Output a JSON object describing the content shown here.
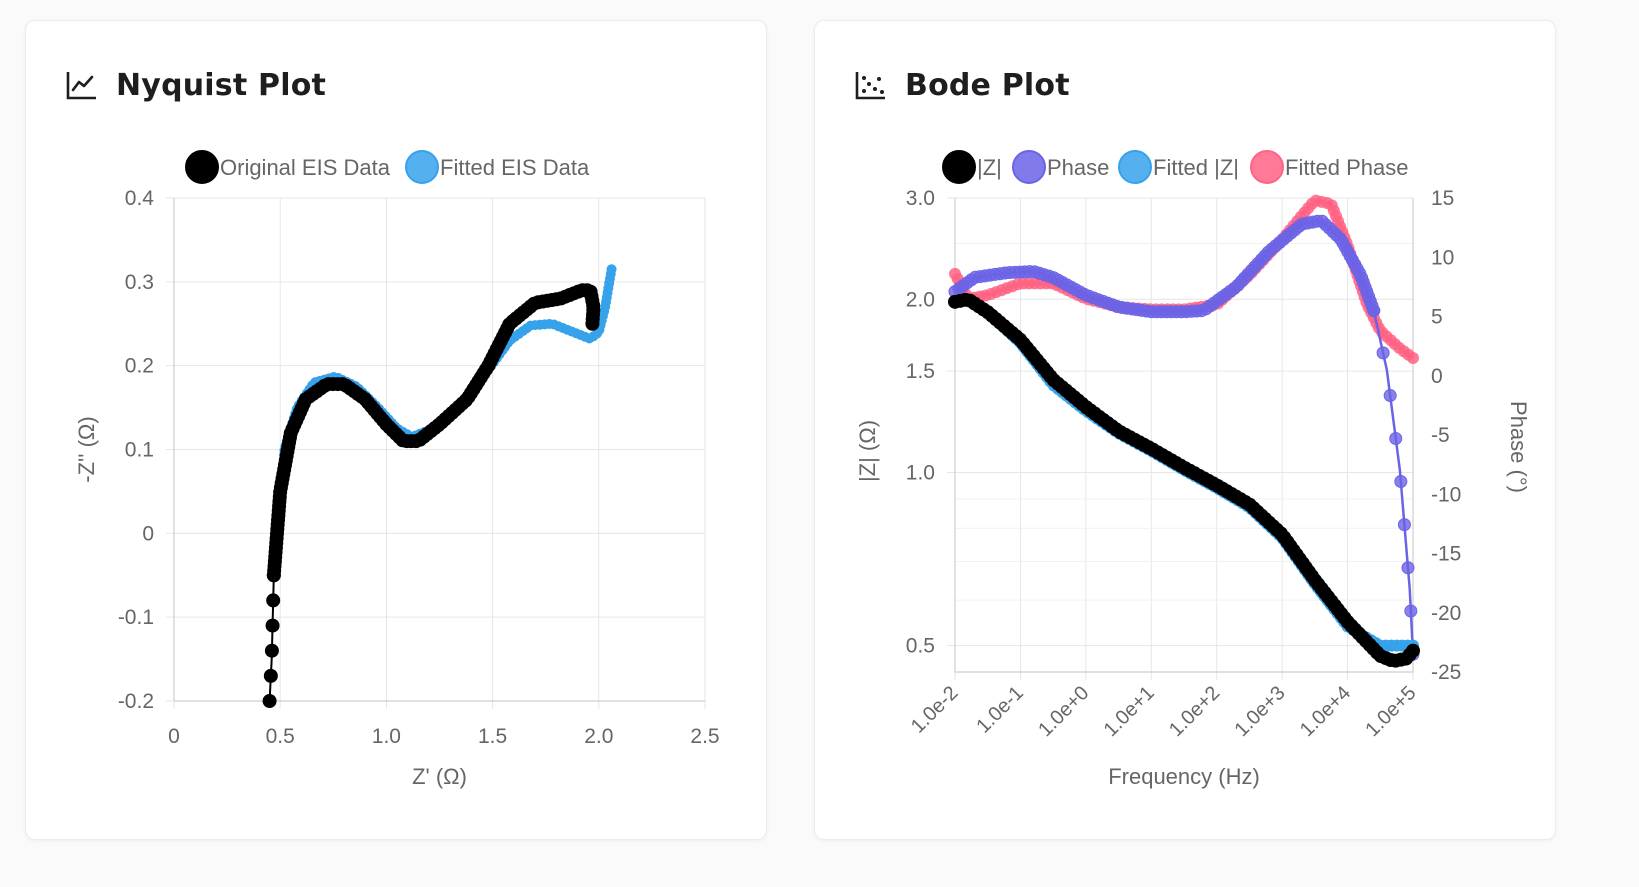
{
  "panels": {
    "nyquist": {
      "title": "Nyquist Plot",
      "icon": "line-chart-icon"
    },
    "bode": {
      "title": "Bode Plot",
      "icon": "scatter-chart-icon"
    }
  },
  "colors": {
    "original": "#000000",
    "fitted_nyquist": "#36a2eb",
    "phase": "#6b63e6",
    "fitted_z": "#36a2eb",
    "fitted_phase": "#ff6384"
  },
  "chart_data": [
    {
      "id": "nyquist",
      "type": "scatter",
      "title": "Nyquist Plot",
      "xlabel": "Z' (Ω)",
      "ylabel": "-Z'' (Ω)",
      "xlim": [
        0,
        2.5
      ],
      "ylim": [
        -0.2,
        0.4
      ],
      "xticks": [
        "0",
        "0.5",
        "1.0",
        "1.5",
        "2.0",
        "2.5"
      ],
      "yticks": [
        "-0.2",
        "-0.1",
        "0",
        "0.1",
        "0.2",
        "0.3",
        "0.4"
      ],
      "legend": [
        "Original EIS Data",
        "Fitted EIS Data"
      ],
      "series": [
        {
          "name": "Original EIS Data",
          "control": [
            [
              0.45,
              -0.2
            ],
            [
              0.46,
              -0.15
            ],
            [
              0.47,
              -0.05
            ],
            [
              0.5,
              0.05
            ],
            [
              0.55,
              0.12
            ],
            [
              0.62,
              0.16
            ],
            [
              0.72,
              0.178
            ],
            [
              0.8,
              0.178
            ],
            [
              0.9,
              0.16
            ],
            [
              1.0,
              0.13
            ],
            [
              1.08,
              0.11
            ],
            [
              1.15,
              0.11
            ],
            [
              1.25,
              0.13
            ],
            [
              1.38,
              0.16
            ],
            [
              1.48,
              0.2
            ],
            [
              1.58,
              0.25
            ],
            [
              1.7,
              0.275
            ],
            [
              1.82,
              0.28
            ],
            [
              1.92,
              0.29
            ],
            [
              1.96,
              0.29
            ],
            [
              1.975,
              0.27
            ],
            [
              1.97,
              0.25
            ]
          ]
        },
        {
          "name": "Fitted EIS Data",
          "control": [
            [
              0.5,
              0.02
            ],
            [
              0.52,
              0.1
            ],
            [
              0.58,
              0.15
            ],
            [
              0.66,
              0.18
            ],
            [
              0.76,
              0.187
            ],
            [
              0.86,
              0.175
            ],
            [
              0.96,
              0.15
            ],
            [
              1.05,
              0.125
            ],
            [
              1.12,
              0.115
            ],
            [
              1.22,
              0.125
            ],
            [
              1.35,
              0.155
            ],
            [
              1.48,
              0.195
            ],
            [
              1.58,
              0.23
            ],
            [
              1.68,
              0.248
            ],
            [
              1.78,
              0.25
            ],
            [
              1.88,
              0.24
            ],
            [
              1.96,
              0.232
            ],
            [
              2.0,
              0.24
            ],
            [
              2.03,
              0.27
            ],
            [
              2.06,
              0.315
            ]
          ]
        }
      ]
    },
    {
      "id": "bode",
      "type": "scatter",
      "title": "Bode Plot",
      "xlabel": "Frequency (Hz)",
      "ylabel": "|Z| (Ω)",
      "y2label": "Phase (°)",
      "x_log_range": [
        -2,
        5
      ],
      "ylim": [
        0.45,
        3.0
      ],
      "y_scale": "log",
      "y2lim": [
        -25,
        15
      ],
      "xticks": [
        "1.0e-2",
        "1.0e-1",
        "1.0e+0",
        "1.0e+1",
        "1.0e+2",
        "1.0e+3",
        "1.0e+4",
        "1.0e+5"
      ],
      "yticks": [
        "0.5",
        "1.0",
        "1.5",
        "2.0",
        "3.0"
      ],
      "y2ticks": [
        "15",
        "10",
        "5",
        "0",
        "-5",
        "-10",
        "-15",
        "-20",
        "-25"
      ],
      "legend": [
        "|Z|",
        "Phase",
        "Fitted |Z|",
        "Fitted Phase"
      ],
      "series": [
        {
          "name": "|Z|",
          "axis": "y",
          "control": [
            [
              -2,
              1.98
            ],
            [
              -1.8,
              2.0
            ],
            [
              -1.5,
              1.9
            ],
            [
              -1.0,
              1.7
            ],
            [
              -0.5,
              1.45
            ],
            [
              0,
              1.3
            ],
            [
              0.5,
              1.18
            ],
            [
              1,
              1.1
            ],
            [
              1.5,
              1.02
            ],
            [
              2,
              0.95
            ],
            [
              2.5,
              0.88
            ],
            [
              3,
              0.78
            ],
            [
              3.5,
              0.65
            ],
            [
              4,
              0.55
            ],
            [
              4.5,
              0.48
            ],
            [
              4.7,
              0.47
            ],
            [
              4.9,
              0.475
            ],
            [
              5,
              0.49
            ]
          ]
        },
        {
          "name": "Fitted |Z|",
          "axis": "y",
          "control": [
            [
              -2,
              1.98
            ],
            [
              -1.8,
              2.0
            ],
            [
              -1.5,
              1.9
            ],
            [
              -1.0,
              1.68
            ],
            [
              -0.5,
              1.42
            ],
            [
              0,
              1.28
            ],
            [
              0.5,
              1.17
            ],
            [
              1,
              1.09
            ],
            [
              1.5,
              1.01
            ],
            [
              2,
              0.94
            ],
            [
              2.5,
              0.87
            ],
            [
              3,
              0.77
            ],
            [
              3.5,
              0.64
            ],
            [
              4,
              0.54
            ],
            [
              4.5,
              0.5
            ],
            [
              5,
              0.5
            ]
          ]
        },
        {
          "name": "Phase",
          "axis": "y2",
          "control": [
            [
              -2,
              7.1
            ],
            [
              -1.7,
              8.3
            ],
            [
              -1.2,
              8.7
            ],
            [
              -0.8,
              8.8
            ],
            [
              -0.5,
              8.3
            ],
            [
              0,
              6.8
            ],
            [
              0.5,
              5.8
            ],
            [
              1,
              5.4
            ],
            [
              1.5,
              5.4
            ],
            [
              1.8,
              5.5
            ],
            [
              2.3,
              7.5
            ],
            [
              2.8,
              10.5
            ],
            [
              3.3,
              12.8
            ],
            [
              3.6,
              13.1
            ],
            [
              3.9,
              11.5
            ],
            [
              4.2,
              8.5
            ],
            [
              4.4,
              5.5
            ],
            [
              4.6,
              0.5
            ],
            [
              4.8,
              -8
            ],
            [
              4.95,
              -18
            ],
            [
              5,
              -23.5
            ]
          ]
        },
        {
          "name": "Fitted Phase",
          "axis": "y2",
          "control": [
            [
              -2,
              8.6
            ],
            [
              -1.8,
              6.5
            ],
            [
              -1.5,
              6.8
            ],
            [
              -1.0,
              7.8
            ],
            [
              -0.5,
              7.8
            ],
            [
              0,
              6.5
            ],
            [
              0.5,
              5.8
            ],
            [
              1,
              5.6
            ],
            [
              1.5,
              5.6
            ],
            [
              2,
              6
            ],
            [
              2.5,
              8.5
            ],
            [
              3,
              11.5
            ],
            [
              3.3,
              13.5
            ],
            [
              3.5,
              14.8
            ],
            [
              3.75,
              14.5
            ],
            [
              4,
              11
            ],
            [
              4.3,
              6
            ],
            [
              4.5,
              3.8
            ],
            [
              4.8,
              2.3
            ],
            [
              5,
              1.5
            ]
          ]
        }
      ]
    }
  ]
}
